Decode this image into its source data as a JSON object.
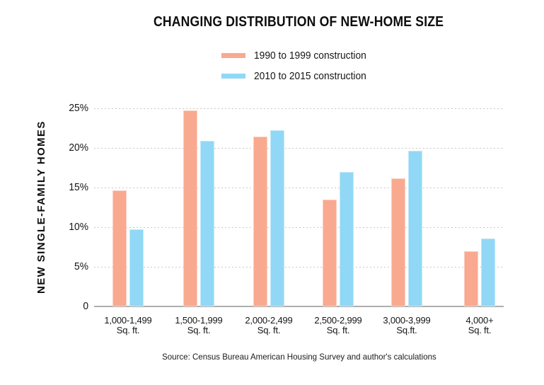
{
  "title": "CHANGING DISTRIBUTION OF NEW-HOME SIZE",
  "legend": [
    {
      "label": "1990 to 1999 construction",
      "color": "#F9A98F"
    },
    {
      "label": "2010 to 2015 construction",
      "color": "#90D8F5"
    }
  ],
  "y_axis_title": "NEW SINGLE-FAMILY HOMES",
  "source": "Source: Census Bureau American Housing Survey and author's calculations",
  "colors": {
    "series_1990s": "#F9A98F",
    "series_2010s": "#90D8F5",
    "gridline": "#c9c9c9",
    "baseline": "#aeaeae",
    "text": "#111111",
    "background": "#ffffff"
  },
  "chart_data": {
    "type": "bar",
    "title": "CHANGING DISTRIBUTION OF NEW-HOME SIZE",
    "xlabel": "",
    "ylabel": "NEW SINGLE-FAMILY HOMES",
    "ylim": [
      0,
      25
    ],
    "yticks": [
      0,
      5,
      10,
      15,
      20,
      25
    ],
    "ytick_labels": [
      "0",
      "5%",
      "10%",
      "15%",
      "20%",
      "25%"
    ],
    "grid": "horizontal-dotted",
    "legend_position": "top-center",
    "categories": [
      [
        "1,000-1,499",
        "Sq. ft."
      ],
      [
        "1,500-1,999",
        "Sq. ft."
      ],
      [
        "2,000-2,499",
        "Sq. ft."
      ],
      [
        "2,500-2,999",
        "Sq. ft."
      ],
      [
        "3,000-3,999",
        "Sq.ft."
      ],
      [
        "4,000+",
        "Sq. ft."
      ]
    ],
    "series": [
      {
        "name": "1990 to 1999 construction",
        "color": "#F9A98F",
        "values": [
          14.6,
          24.7,
          21.4,
          13.5,
          16.2,
          7.0
        ]
      },
      {
        "name": "2010 to 2015 construction",
        "color": "#90D8F5",
        "values": [
          9.7,
          20.9,
          22.2,
          17.0,
          19.6,
          8.6
        ]
      }
    ]
  }
}
